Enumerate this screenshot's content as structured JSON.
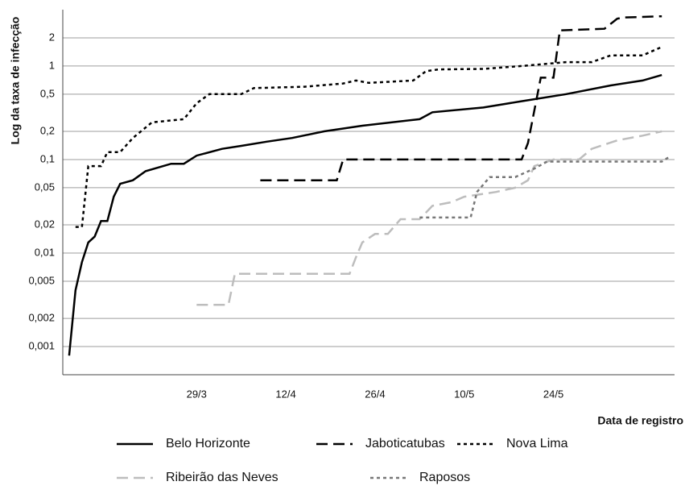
{
  "chart_data": {
    "type": "line",
    "y_label": "Log da taxa de infecção",
    "x_label": "Data de registro",
    "yscale": "log",
    "grid": true,
    "legend": "bottom",
    "xlim": [
      "8/3",
      "12/6"
    ],
    "xticks": [
      "29/3",
      "12/4",
      "26/4",
      "10/5",
      "24/5"
    ],
    "ylim": [
      0.0005,
      4
    ],
    "yticks": [
      {
        "value": 0.001,
        "label": "0,001"
      },
      {
        "value": 0.002,
        "label": "0,002"
      },
      {
        "value": 0.005,
        "label": "0,005"
      },
      {
        "value": 0.01,
        "label": "0,01"
      },
      {
        "value": 0.02,
        "label": "0,02"
      },
      {
        "value": 0.05,
        "label": "0,05"
      },
      {
        "value": 0.1,
        "label": "0,1"
      },
      {
        "value": 0.2,
        "label": "0,2"
      },
      {
        "value": 0.5,
        "label": "0,5"
      },
      1,
      2
    ],
    "series": [
      {
        "name": "Belo Horizonte",
        "color": "#000000",
        "dash": "solid",
        "x": [
          "9/3",
          "10/3",
          "11/3",
          "12/3",
          "13/3",
          "14/3",
          "15/3",
          "16/3",
          "17/3",
          "19/3",
          "21/3",
          "25/3",
          "27/3",
          "29/3",
          "2/4",
          "5/4",
          "9/4",
          "13/4",
          "18/4",
          "24/4",
          "3/5",
          "5/5",
          "13/5",
          "19/5",
          "26/5",
          "2/6",
          "7/6",
          "10/6"
        ],
        "values": [
          0.0008,
          0.004,
          0.008,
          0.013,
          0.015,
          0.022,
          0.022,
          0.04,
          0.055,
          0.06,
          0.075,
          0.09,
          0.09,
          0.11,
          0.13,
          0.14,
          0.155,
          0.17,
          0.2,
          0.23,
          0.27,
          0.32,
          0.36,
          0.42,
          0.5,
          0.62,
          0.7,
          0.8
        ]
      },
      {
        "name": "Jaboticatubas",
        "color": "#000000",
        "dash": "dashed",
        "x": [
          "8/4",
          "20/4",
          "21/4",
          "19/5",
          "20/5",
          "22/5",
          "24/5",
          "25/5",
          "1/6",
          "3/6",
          "4/6",
          "10/6"
        ],
        "values": [
          0.06,
          0.06,
          0.1,
          0.1,
          0.15,
          0.75,
          0.75,
          2.4,
          2.5,
          3.2,
          3.3,
          3.4
        ]
      },
      {
        "name": "Nova Lima",
        "color": "#000000",
        "dash": "dotted",
        "x": [
          "10/3",
          "11/3",
          "12/3",
          "14/3",
          "15/3",
          "17/3",
          "19/3",
          "22/3",
          "27/3",
          "29/3",
          "31/3",
          "5/4",
          "7/4",
          "15/4",
          "21/4",
          "23/4",
          "25/4",
          "2/5",
          "4/5",
          "6/5",
          "13/5",
          "19/5",
          "26/5",
          "30/5",
          "2/6",
          "7/6",
          "10/6"
        ],
        "values": [
          0.019,
          0.019,
          0.085,
          0.085,
          0.12,
          0.12,
          0.17,
          0.25,
          0.27,
          0.4,
          0.5,
          0.5,
          0.58,
          0.6,
          0.65,
          0.7,
          0.66,
          0.7,
          0.88,
          0.92,
          0.93,
          1.0,
          1.1,
          1.1,
          1.3,
          1.3,
          1.6
        ]
      },
      {
        "name": "Ribeirão das Neves",
        "color": "#bdbdbd",
        "dash": "dashed",
        "x": [
          "29/3",
          "3/4",
          "4/4",
          "22/4",
          "23/4",
          "24/4",
          "26/4",
          "28/4",
          "30/4",
          "3/5",
          "5/5",
          "8/5",
          "10/5",
          "15/5",
          "18/5",
          "20/5",
          "21/5",
          "24/5",
          "28/5",
          "30/5",
          "3/6",
          "7/6",
          "10/6"
        ],
        "values": [
          0.0028,
          0.0028,
          0.006,
          0.006,
          0.009,
          0.013,
          0.016,
          0.016,
          0.023,
          0.023,
          0.032,
          0.035,
          0.04,
          0.045,
          0.05,
          0.06,
          0.085,
          0.1,
          0.1,
          0.13,
          0.16,
          0.18,
          0.2
        ]
      },
      {
        "name": "Raposos",
        "color": "#777777",
        "dash": "dotted",
        "x": [
          "3/5",
          "11/5",
          "12/5",
          "14/5",
          "18/5",
          "21/5",
          "23/5",
          "10/6",
          "11/6"
        ],
        "values": [
          0.024,
          0.024,
          0.045,
          0.065,
          0.065,
          0.08,
          0.095,
          0.095,
          0.105
        ]
      }
    ]
  }
}
